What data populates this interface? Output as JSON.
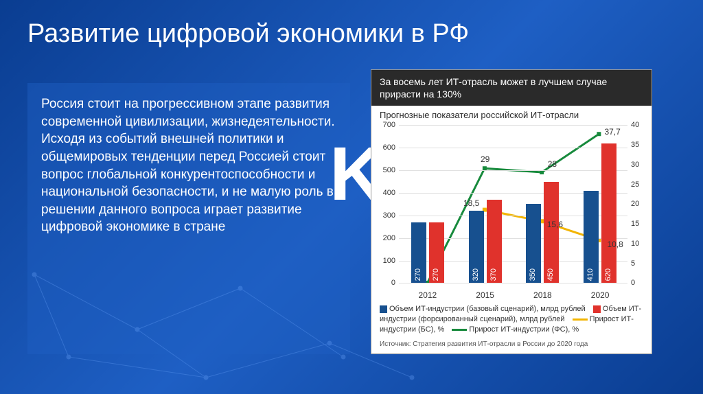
{
  "title": "Развитие цифровой экономики в РФ",
  "body_text": "Россия стоит на прогрессивном этапе развития современной цивилизации, жизнедеятельности. Исходя из событий внешней политики и общемировых тенденции перед Россией стоит вопрос глобальной конкурентоспособности и национальной безопасности, и не малую роль в решении данного вопроса играет развитие цифровой экономике в стране",
  "bg_letter": "K",
  "chart": {
    "header": "За восемь лет ИТ-отрасль может в лучшем случае прирасти на 130%",
    "subtitle": "Прогнозные показатели российской ИТ-отрасли",
    "categories": [
      "2012",
      "2015",
      "2018",
      "2020"
    ],
    "y_left": {
      "min": 0,
      "max": 700,
      "step": 100
    },
    "y_right": {
      "min": 0,
      "max": 40,
      "step": 5
    },
    "bars_base": [
      270,
      320,
      350,
      410
    ],
    "bars_forced": [
      270,
      370,
      450,
      620
    ],
    "bar_base_color": "#17508f",
    "bar_forced_color": "#e0322c",
    "line_bs": [
      null,
      18.5,
      15.6,
      10.8
    ],
    "line_fs": [
      0,
      29,
      28,
      37.7
    ],
    "line_bs_color": "#f2b400",
    "line_fs_color": "#178a3c",
    "grid_color": "#e0e0e0",
    "legend": [
      {
        "swatch": "#17508f",
        "type": "box",
        "text": "Объем ИТ-индустрии (базовый сценарий), млрд рублей"
      },
      {
        "swatch": "#e0322c",
        "type": "box",
        "text": "Объем ИТ-индустрии (форсированный сценарий), млрд рублей"
      },
      {
        "swatch": "#f2b400",
        "type": "line",
        "text": "Прирост ИТ-индустрии (БС), %"
      },
      {
        "swatch": "#178a3c",
        "type": "line",
        "text": "Прирост ИТ-индустрии (ФС), %"
      }
    ],
    "source": "Источник: Стратегия развития ИТ-отрасли в России до 2020 года"
  }
}
